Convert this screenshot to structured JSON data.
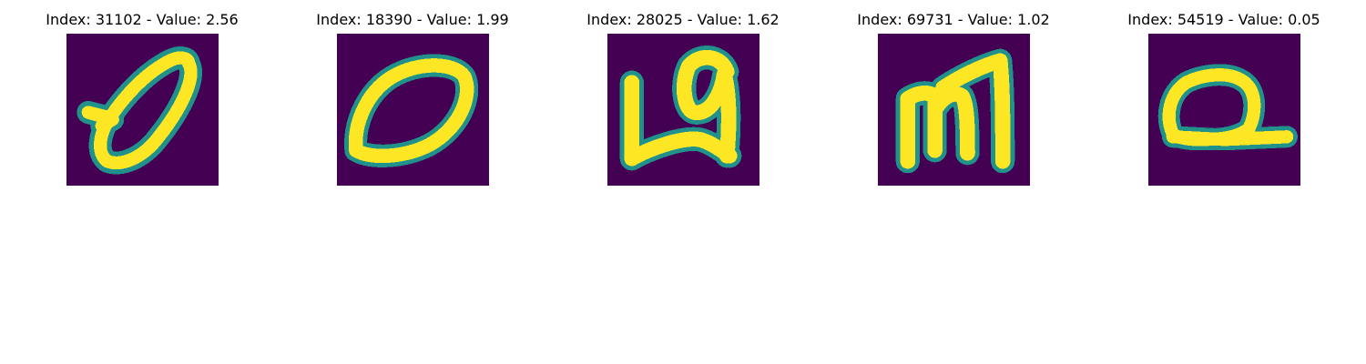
{
  "figure": {
    "panels": [
      {
        "title": "Index: 31102 - Value: 2.56",
        "glyph": "handwritten-zero"
      },
      {
        "title": "Index: 18390 - Value: 1.99",
        "glyph": "handwritten-zero"
      },
      {
        "title": "Index: 28025 - Value: 1.62",
        "glyph": "handwritten-a"
      },
      {
        "title": "Index: 69731 - Value: 1.02",
        "glyph": "handwritten-m"
      },
      {
        "title": "Index: 54519 - Value: 0.05",
        "glyph": "handwritten-a"
      }
    ]
  },
  "colors": {
    "background": "#440154",
    "stroke_core": "#fde725",
    "stroke_edge": "#21918c"
  }
}
